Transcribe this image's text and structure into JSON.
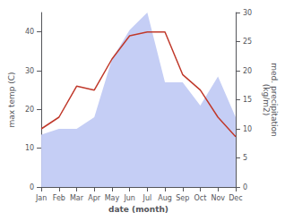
{
  "chart_data": {
    "type": "line",
    "categories": [
      "Jan",
      "Feb",
      "Mar",
      "Apr",
      "May",
      "Jun",
      "Jul",
      "Aug",
      "Sep",
      "Oct",
      "Nov",
      "Dec"
    ],
    "xlabel": "date (month)",
    "ylabel": "max temp (C)",
    "y2label": "med. precipitation\n(kg/m2)",
    "series": [
      {
        "type": "area",
        "axis": "y2",
        "color": "#c5cef5",
        "values": [
          9.0,
          10.0,
          10.0,
          12.0,
          22.0,
          27.0,
          30.0,
          18.0,
          18.0,
          14.0,
          19.0,
          12.0
        ]
      },
      {
        "type": "line",
        "color": "#c0392b",
        "values": [
          15.0,
          18.0,
          26.0,
          25.0,
          33.0,
          39.0,
          40.0,
          40.0,
          29.0,
          25.0,
          18.0,
          13.0
        ]
      }
    ],
    "ylim": [
      0,
      45
    ],
    "yticks": [
      0,
      10,
      20,
      30,
      40
    ],
    "y2lim": [
      0,
      30
    ],
    "y2ticks": [
      0,
      5,
      10,
      15,
      20,
      25,
      30
    ],
    "grid": false
  }
}
